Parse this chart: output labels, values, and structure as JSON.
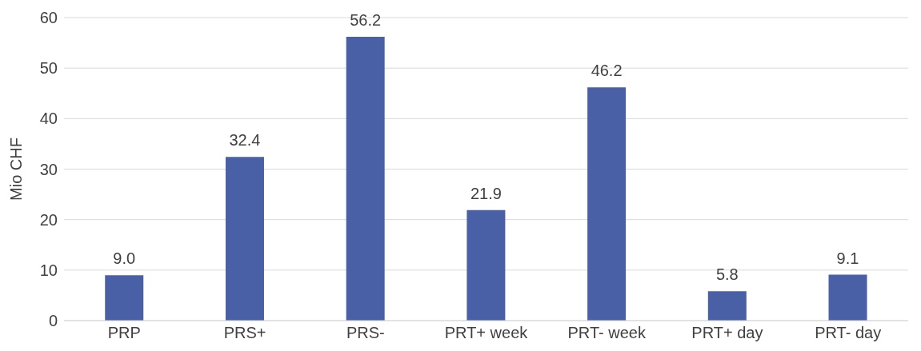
{
  "chart_data": {
    "type": "bar",
    "ylabel": "Mio CHF",
    "categories": [
      "PRP",
      "PRS+",
      "PRS-",
      "PRT+ week",
      "PRT- week",
      "PRT+ day",
      "PRT- day"
    ],
    "values": [
      9.0,
      32.4,
      56.2,
      21.9,
      46.2,
      5.8,
      9.1
    ],
    "value_labels": [
      "9.0",
      "32.4",
      "56.2",
      "21.9",
      "46.2",
      "5.8",
      "9.1"
    ],
    "color": "#4a60a6",
    "ylim": [
      0,
      60
    ],
    "yticks": [
      0,
      10,
      20,
      30,
      40,
      50,
      60
    ],
    "grid": "y",
    "legend": false
  }
}
